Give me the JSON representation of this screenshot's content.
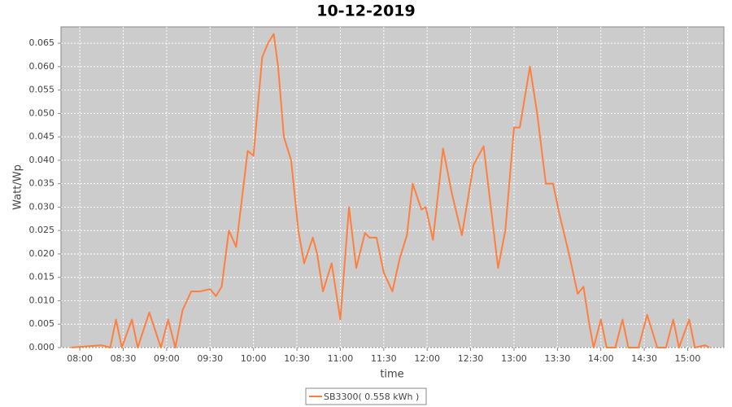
{
  "chart_data": {
    "type": "line",
    "title": "10-12-2019",
    "x_label": "time",
    "y_label": "Watt/Wp",
    "x": [
      474,
      495,
      501,
      505,
      509,
      516,
      520,
      528,
      536,
      541,
      546,
      551,
      557,
      563,
      570,
      574,
      578,
      583,
      588,
      596,
      600,
      606,
      610,
      614,
      617,
      621,
      626,
      631,
      635,
      641,
      644,
      648,
      654,
      660,
      666,
      671,
      677,
      680,
      685,
      690,
      696,
      701,
      706,
      710,
      716,
      719,
      724,
      731,
      737,
      744,
      752,
      759,
      764,
      769,
      774,
      780,
      784,
      791,
      796,
      802,
      807,
      811,
      818,
      824,
      828,
      832,
      835,
      840,
      844,
      850,
      855,
      859,
      866,
      872,
      879,
      885,
      890,
      894,
      901,
      905,
      912,
      915
    ],
    "series": [
      {
        "name": "SB3300( 0.558 kWh )",
        "color": "#ff7f3f",
        "values": [
          0,
          0.0005,
          0,
          0.006,
          0,
          0.006,
          0,
          0.0075,
          0,
          0.006,
          0,
          0.008,
          0.012,
          0.012,
          0.0125,
          0.011,
          0.013,
          0.025,
          0.0215,
          0.042,
          0.041,
          0.062,
          0.065,
          0.067,
          0.06,
          0.045,
          0.04,
          0.025,
          0.018,
          0.0235,
          0.02,
          0.012,
          0.018,
          0.006,
          0.03,
          0.017,
          0.0245,
          0.0235,
          0.0235,
          0.016,
          0.012,
          0.019,
          0.024,
          0.035,
          0.0295,
          0.03,
          0.023,
          0.0425,
          0.033,
          0.024,
          0.039,
          0.043,
          0.03,
          0.017,
          0.025,
          0.047,
          0.047,
          0.06,
          0.05,
          0.035,
          0.035,
          0.029,
          0.02,
          0.0115,
          0.013,
          0.005,
          0,
          0.006,
          0,
          0,
          0.006,
          0,
          0,
          0.007,
          0,
          0,
          0.006,
          0,
          0.006,
          0,
          0.0005,
          0
        ]
      }
    ],
    "xlim": [
      467,
      925
    ],
    "ylim": [
      0,
      0.0685
    ],
    "xticks": [
      {
        "value": 480,
        "label": "08:00"
      },
      {
        "value": 510,
        "label": "08:30"
      },
      {
        "value": 540,
        "label": "09:00"
      },
      {
        "value": 570,
        "label": "09:30"
      },
      {
        "value": 600,
        "label": "10:00"
      },
      {
        "value": 630,
        "label": "10:30"
      },
      {
        "value": 660,
        "label": "11:00"
      },
      {
        "value": 690,
        "label": "11:30"
      },
      {
        "value": 720,
        "label": "12:00"
      },
      {
        "value": 750,
        "label": "12:30"
      },
      {
        "value": 780,
        "label": "13:00"
      },
      {
        "value": 810,
        "label": "13:30"
      },
      {
        "value": 840,
        "label": "14:00"
      },
      {
        "value": 870,
        "label": "14:30"
      },
      {
        "value": 900,
        "label": "15:00"
      }
    ],
    "yticks": [
      {
        "value": 0,
        "label": "0.000"
      },
      {
        "value": 0.005,
        "label": "0.005"
      },
      {
        "value": 0.01,
        "label": "0.010"
      },
      {
        "value": 0.015,
        "label": "0.015"
      },
      {
        "value": 0.02,
        "label": "0.020"
      },
      {
        "value": 0.025,
        "label": "0.025"
      },
      {
        "value": 0.03,
        "label": "0.030"
      },
      {
        "value": 0.035,
        "label": "0.035"
      },
      {
        "value": 0.04,
        "label": "0.040"
      },
      {
        "value": 0.045,
        "label": "0.045"
      },
      {
        "value": 0.05,
        "label": "0.050"
      },
      {
        "value": 0.055,
        "label": "0.055"
      },
      {
        "value": 0.06,
        "label": "0.060"
      },
      {
        "value": 0.065,
        "label": "0.065"
      }
    ],
    "grid": true
  }
}
